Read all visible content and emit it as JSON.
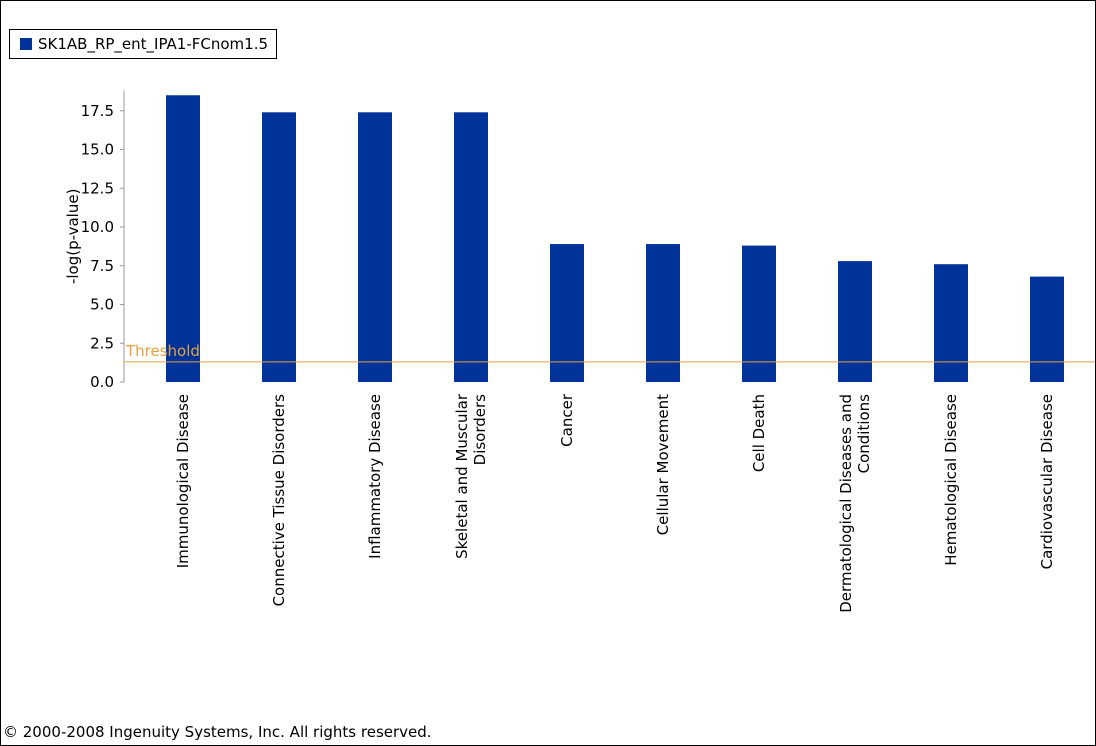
{
  "footer": {
    "copyright": "© 2000-2008 Ingenuity Systems, Inc. All rights reserved."
  },
  "colors": {
    "bar": "#003399",
    "threshold": "#e6a23c",
    "axis": "#999999"
  },
  "chart_data": {
    "type": "bar",
    "title": "",
    "xlabel": "",
    "ylabel": "-log(p-value)",
    "ylim": [
      0,
      18.8
    ],
    "yticks": [
      "0.0",
      "2.5",
      "5.0",
      "7.5",
      "10.0",
      "12.5",
      "15.0",
      "17.5"
    ],
    "categories": [
      "Immunological Disease",
      "Connective Tissue Disorders",
      "Inflammatory Disease",
      "Skeletal and Muscular Disorders",
      "Cancer",
      "Cellular Movement",
      "Cell Death",
      "Dermatological Diseases and Conditions",
      "Hematological Disease",
      "Cardiovascular Disease"
    ],
    "series": [
      {
        "name": "SK1AB_RP_ent_IPA1-FCnom1.5",
        "values": [
          18.5,
          17.4,
          17.4,
          17.4,
          8.9,
          8.9,
          8.8,
          7.8,
          7.6,
          6.8
        ]
      }
    ],
    "threshold": {
      "label": "Threshold",
      "value": 1.3
    },
    "legend_position": "top-left",
    "grid": false
  }
}
